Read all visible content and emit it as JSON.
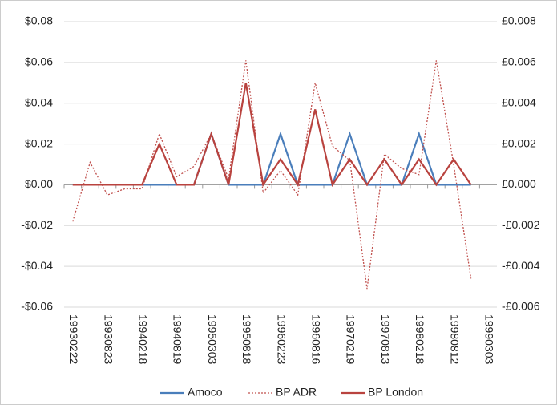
{
  "chart_data": {
    "type": "line",
    "categories": [
      "19930222",
      null,
      "19930823",
      null,
      "19940218",
      null,
      "19940819",
      null,
      "19950303",
      null,
      "19950818",
      null,
      "19960223",
      null,
      "19960816",
      null,
      "19970219",
      null,
      "19970813",
      null,
      "19980218",
      null,
      "19980812",
      null,
      "19990303"
    ],
    "series": [
      {
        "name": "Amoco",
        "color": "#4a7ebb",
        "style": "solid",
        "values": [
          0,
          0,
          0,
          0,
          0,
          0,
          0,
          0,
          0.025,
          0,
          0,
          0,
          0.025,
          0,
          0,
          0,
          0.025,
          0,
          0,
          0,
          0.025,
          0,
          0,
          0,
          null
        ]
      },
      {
        "name": "BP ADR",
        "color": "#c0504d",
        "style": "dotted",
        "values": [
          -0.018,
          0.011,
          -0.005,
          -0.002,
          -0.002,
          0.025,
          0.004,
          0.009,
          0.025,
          0.003,
          0.061,
          -0.004,
          0.007,
          -0.005,
          0.05,
          0.019,
          0.012,
          -0.051,
          0.015,
          0.008,
          0.005,
          0.061,
          0.01,
          -0.046,
          null
        ]
      },
      {
        "name": "BP London",
        "color": "#b9433f",
        "style": "solid",
        "axis": "y2",
        "values": [
          0,
          0,
          0,
          0,
          0,
          0.002,
          0,
          0,
          0.0025,
          0,
          0.005,
          0,
          0.00125,
          0,
          0.0037,
          0,
          0.00125,
          0,
          0.00125,
          0,
          0.00125,
          0,
          0.00125,
          0,
          null
        ]
      }
    ],
    "ylim": [
      -0.06,
      0.08
    ],
    "yticks": [
      {
        "value": -0.06,
        "label": "-$0.06"
      },
      {
        "value": -0.04,
        "label": "-$0.04"
      },
      {
        "value": -0.02,
        "label": "-$0.02"
      },
      {
        "value": 0,
        "label": "$0.00"
      },
      {
        "value": 0.02,
        "label": "$0.02"
      },
      {
        "value": 0.04,
        "label": "$0.04"
      },
      {
        "value": 0.06,
        "label": "$0.06"
      },
      {
        "value": 0.08,
        "label": "$0.08"
      }
    ],
    "y2lim": [
      -0.006,
      0.008
    ],
    "y2ticks": [
      {
        "value": -0.006,
        "label": "-£0.006"
      },
      {
        "value": -0.004,
        "label": "-£0.004"
      },
      {
        "value": -0.002,
        "label": "-£0.002"
      },
      {
        "value": 0,
        "label": "£0.000"
      },
      {
        "value": 0.002,
        "label": "£0.002"
      },
      {
        "value": 0.004,
        "label": "£0.004"
      },
      {
        "value": 0.006,
        "label": "£0.006"
      },
      {
        "value": 0.008,
        "label": "£0.008"
      }
    ],
    "grid": true,
    "legend": "bottom"
  }
}
